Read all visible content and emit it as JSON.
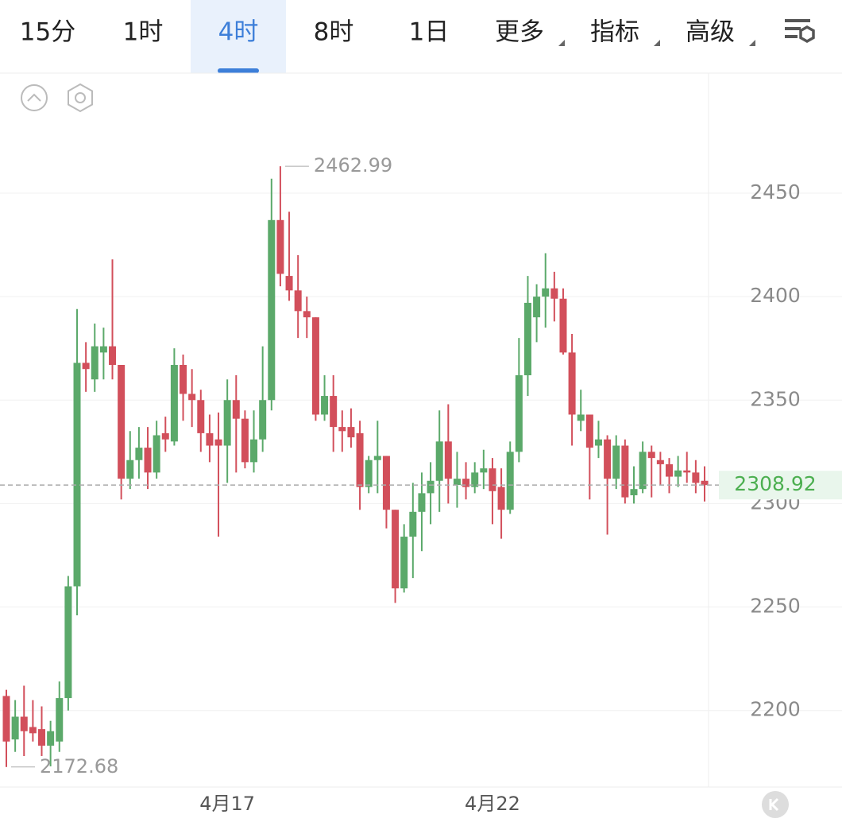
{
  "tabs": {
    "items": [
      "15分",
      "1时",
      "4时",
      "8时",
      "1日",
      "更多",
      "指标",
      "高级"
    ],
    "active": 2
  },
  "chart_data": {
    "type": "candlestick",
    "categories": [
      null,
      null,
      null,
      null,
      null,
      null,
      null,
      null,
      null,
      null,
      null,
      null,
      null,
      null,
      null,
      null,
      null,
      null,
      null,
      null,
      null,
      null,
      null,
      null,
      null,
      "4月17",
      null,
      null,
      null,
      null,
      null,
      null,
      null,
      null,
      null,
      null,
      null,
      null,
      null,
      null,
      null,
      null,
      null,
      null,
      null,
      null,
      null,
      null,
      null,
      null,
      null,
      null,
      null,
      null,
      null,
      "4月22",
      null,
      null,
      null,
      null,
      null,
      null,
      null,
      null,
      null,
      null,
      null,
      null,
      null,
      null,
      null,
      null,
      null,
      null,
      null,
      null,
      null,
      null,
      null,
      null
    ],
    "open": [
      2207,
      2186,
      2197,
      2192,
      2191,
      2183,
      2185,
      2206,
      2260,
      2368,
      2360,
      2373,
      2376,
      2367,
      2312,
      2321,
      2327,
      2315,
      2334,
      2330,
      2367,
      2353,
      2350,
      2334,
      2331,
      2328,
      2350,
      2341,
      2320,
      2331,
      2350,
      2437,
      2410,
      2403,
      2393,
      2390,
      2343,
      2352,
      2337,
      2337,
      2334,
      2308,
      2321,
      2323,
      2297,
      2259,
      2284,
      2296,
      2305,
      2311,
      2330,
      2309,
      2312,
      2308,
      2315,
      2317,
      2308,
      2297,
      2325,
      2362,
      2390,
      2400,
      2404,
      2399,
      2373,
      2340,
      2343,
      2328,
      2331,
      2312,
      2328,
      2304,
      2307,
      2325,
      2321,
      2319,
      2313,
      2316,
      2315,
      2311
    ],
    "high": [
      2210,
      2205,
      2212,
      2205,
      2202,
      2195,
      2214,
      2265,
      2394,
      2378,
      2387,
      2385,
      2418,
      2367,
      2335,
      2337,
      2337,
      2340,
      2342,
      2375,
      2372,
      2365,
      2355,
      2343,
      2344,
      2360,
      2362,
      2345,
      2345,
      2376,
      2457,
      2462.99,
      2441,
      2420,
      2400,
      2390,
      2362,
      2362,
      2345,
      2346,
      2340,
      2323,
      2340,
      2323,
      2297,
      2290,
      2310,
      2315,
      2320,
      2345,
      2348,
      2325,
      2320,
      2320,
      2326,
      2322,
      2317,
      2330,
      2380,
      2410,
      2406,
      2421,
      2412,
      2404,
      2382,
      2355,
      2343,
      2340,
      2333,
      2333,
      2331,
      2318,
      2330,
      2328,
      2325,
      2322,
      2323,
      2325,
      2321,
      2318
    ],
    "low": [
      2172.68,
      2180,
      2178,
      2185,
      2178,
      2173,
      2180,
      2200,
      2246,
      2354,
      2354,
      2360,
      2360,
      2302,
      2307,
      2312,
      2307,
      2312,
      2325,
      2328,
      2340,
      2337,
      2325,
      2320,
      2284,
      2310,
      2315,
      2317,
      2315,
      2325,
      2345,
      2405,
      2398,
      2380,
      2380,
      2340,
      2340,
      2325,
      2325,
      2327,
      2297,
      2305,
      2305,
      2288,
      2252,
      2257,
      2264,
      2277,
      2290,
      2296,
      2300,
      2298,
      2302,
      2305,
      2307,
      2290,
      2283,
      2295,
      2320,
      2352,
      2378,
      2385,
      2388,
      2372,
      2328,
      2335,
      2302,
      2322,
      2285,
      2307,
      2300,
      2300,
      2305,
      2303,
      2309,
      2305,
      2308,
      2310,
      2305,
      2301
    ],
    "close": [
      2185,
      2197,
      2190,
      2189,
      2183,
      2190,
      2206,
      2260,
      2368,
      2365,
      2376,
      2376,
      2367,
      2312,
      2321,
      2327,
      2315,
      2333,
      2331,
      2367,
      2353,
      2350,
      2334,
      2328,
      2328,
      2350,
      2341,
      2320,
      2331,
      2350,
      2437,
      2411,
      2403,
      2393,
      2390,
      2343,
      2352,
      2337,
      2335,
      2332,
      2308,
      2321,
      2323,
      2297,
      2259,
      2284,
      2296,
      2305,
      2311,
      2330,
      2312,
      2312,
      2308,
      2315,
      2317,
      2306,
      2297,
      2325,
      2362,
      2397,
      2400,
      2404,
      2399,
      2373,
      2343,
      2343,
      2327,
      2331,
      2312,
      2328,
      2303,
      2307,
      2325,
      2322,
      2319,
      2313,
      2316,
      2315,
      2310,
      2308.92
    ],
    "up_color": "#5ba96a",
    "down_color": "#d24f5b",
    "ylim": [
      2163,
      2508
    ],
    "yticks": [
      2200,
      2250,
      2300,
      2350,
      2400,
      2450
    ],
    "grid": true,
    "high_marker": 2462.99,
    "low_marker": 2172.68,
    "last_price": 2308.92
  }
}
